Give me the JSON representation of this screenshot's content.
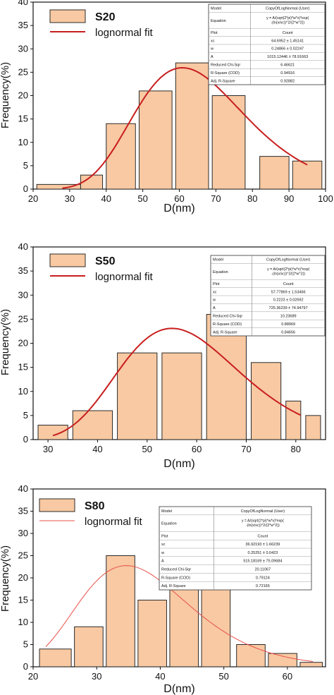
{
  "chart_data": [
    {
      "type": "bar",
      "legend_title": "S20",
      "legend_fit": "lognormal fit",
      "xlabel": "D(nm)",
      "ylabel": "Frequency(%)",
      "xlim": [
        20,
        100
      ],
      "ylim": [
        0,
        40
      ],
      "xticks": [
        20,
        30,
        40,
        50,
        60,
        70,
        80,
        90,
        100
      ],
      "yticks": [
        0,
        5,
        10,
        15,
        20,
        25,
        30,
        35,
        40
      ],
      "bars": [
        {
          "x0": 21,
          "x1": 33,
          "value": 1
        },
        {
          "x0": 33,
          "x1": 39,
          "value": 3
        },
        {
          "x0": 40,
          "x1": 48,
          "value": 14
        },
        {
          "x0": 49,
          "x1": 58,
          "value": 21
        },
        {
          "x0": 59,
          "x1": 68,
          "value": 27
        },
        {
          "x0": 69,
          "x1": 78,
          "value": 20
        },
        {
          "x0": 82,
          "x1": 90,
          "value": 7
        },
        {
          "x0": 91,
          "x1": 99,
          "value": 6
        }
      ],
      "fit": {
        "xc": 64.6952,
        "w": 0.24866,
        "A": 1015.12446,
        "x_start": 28,
        "x_end": 95
      },
      "fit_color": "#c81e1e",
      "stats": [
        [
          "Model",
          "CopyOfLogNormal (User)"
        ],
        [
          "Equation",
          "y = A/(sqrt(2*pi)*w*x)*exp(-(ln(x/xc))^2/(2*w^2))"
        ],
        [
          "Plot",
          "Count"
        ],
        [
          "xc",
          "64.6952 ± 1.45141"
        ],
        [
          "w",
          "0.24866 ± 0.02247"
        ],
        [
          "A",
          "1015.12446 ± 78.91663"
        ],
        [
          "Reduced Chi-Sqr",
          "6.46621"
        ],
        [
          "R-Square (COD)",
          "0.94916"
        ],
        [
          "Adj. R-Square",
          "0.92882"
        ]
      ]
    },
    {
      "type": "bar",
      "legend_title": "S50",
      "legend_fit": "lognormal fit",
      "xlabel": "D(nm)",
      "ylabel": "Frequency(%)",
      "xlim": [
        27,
        86
      ],
      "ylim": [
        0,
        40
      ],
      "xticks": [
        30,
        40,
        50,
        60,
        70,
        80
      ],
      "yticks": [
        0,
        5,
        10,
        15,
        20,
        25,
        30,
        35,
        40
      ],
      "bars": [
        {
          "x0": 28,
          "x1": 34,
          "value": 3
        },
        {
          "x0": 35,
          "x1": 43,
          "value": 6
        },
        {
          "x0": 44,
          "x1": 52,
          "value": 18
        },
        {
          "x0": 53,
          "x1": 61,
          "value": 18
        },
        {
          "x0": 62,
          "x1": 70,
          "value": 26
        },
        {
          "x0": 71,
          "x1": 77,
          "value": 16
        },
        {
          "x0": 78,
          "x1": 81,
          "value": 8
        },
        {
          "x0": 82,
          "x1": 85,
          "value": 5
        }
      ],
      "fit": {
        "xc": 57.77869,
        "w": 0.2223,
        "A": 725.36239,
        "x_start": 31,
        "x_end": 81
      },
      "fit_color": "#c81e1e",
      "stats": [
        [
          "Model",
          "CopyOfLogNormal (User)"
        ],
        [
          "Equation",
          "y = A/(sqrt(2*pi)*w*x)*exp(-(ln(x/xc))^2/(2*w^2))"
        ],
        [
          "Plot",
          "Count"
        ],
        [
          "xc",
          "57.77869 ± 1.53466"
        ],
        [
          "w",
          "0.2223 ± 0.02692"
        ],
        [
          "A",
          "725.36239 ± 74.94797"
        ],
        [
          "Reduced Chi-Sqr",
          "10.23689"
        ],
        [
          "R-Square (COD)",
          "0.88969"
        ],
        [
          "Adj. R-Square",
          "0.84656"
        ]
      ]
    },
    {
      "type": "bar",
      "legend_title": "S80",
      "legend_fit": "lognormal fit",
      "xlabel": "D(nm)",
      "ylabel": "Frequency(%)",
      "xlim": [
        20,
        66
      ],
      "ylim": [
        0,
        40
      ],
      "xticks": [
        20,
        30,
        40,
        50,
        60
      ],
      "yticks": [
        0,
        5,
        10,
        15,
        20,
        25,
        30,
        35,
        40
      ],
      "bars": [
        {
          "x0": 21,
          "x1": 26,
          "value": 4
        },
        {
          "x0": 26.5,
          "x1": 31,
          "value": 9
        },
        {
          "x0": 31.5,
          "x1": 36,
          "value": 25
        },
        {
          "x0": 36.5,
          "x1": 41,
          "value": 15
        },
        {
          "x0": 41.5,
          "x1": 46,
          "value": 19
        },
        {
          "x0": 46.5,
          "x1": 51,
          "value": 18
        },
        {
          "x0": 52,
          "x1": 56.5,
          "value": 5
        },
        {
          "x0": 57,
          "x1": 61.5,
          "value": 3
        },
        {
          "x0": 62,
          "x1": 65.5,
          "value": 1
        }
      ],
      "fit": {
        "xc": 36.92193,
        "w": 0.25251,
        "A": 515.18169,
        "x_start": 22,
        "x_end": 64
      },
      "fit_color": "#e8504a",
      "stats": [
        [
          "Model",
          "CopyOfLogNormal (User)"
        ],
        [
          "Equation",
          "y = A/(sqrt(2*pi)*w*x)*exp(-(ln(x/xc))^2/(2*w^2))"
        ],
        [
          "Plot",
          "Count"
        ],
        [
          "xc",
          "36.92193 ± 1.66239"
        ],
        [
          "w",
          "0.25251 ± 0.0423"
        ],
        [
          "A",
          "515.18169 ± 75.09684"
        ],
        [
          "Reduced Chi-Sqr",
          "20.11067"
        ],
        [
          "R-Square (COD)",
          "0.79124"
        ],
        [
          "Adj. R-Square",
          "0.72165"
        ]
      ]
    }
  ],
  "colors": {
    "bar_fill": "#f8c9a2",
    "bar_stroke": "#2a2a2a",
    "axis": "#111111"
  }
}
